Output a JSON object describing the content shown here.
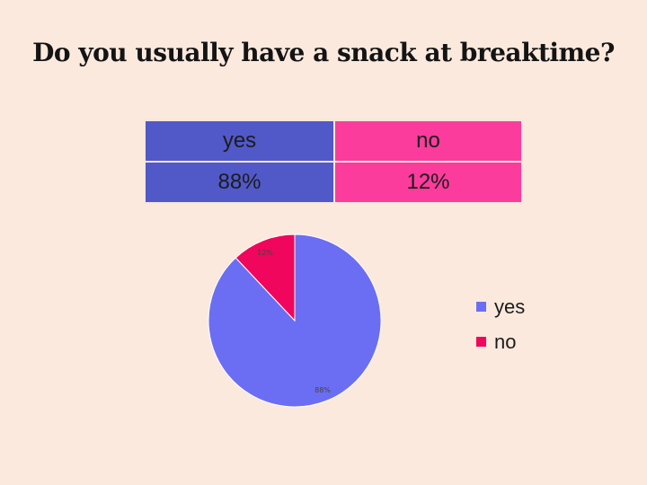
{
  "title": "Do you usually have a snack at breaktime?",
  "table": {
    "headers": [
      "yes",
      "no"
    ],
    "values": [
      "88%",
      "12%"
    ],
    "header_colors": [
      "#5158c8",
      "#fb3c9c"
    ]
  },
  "chart_data": {
    "type": "pie",
    "categories": [
      "yes",
      "no"
    ],
    "values": [
      88,
      12
    ],
    "data_labels": [
      "88%",
      "12%"
    ],
    "colors": [
      "#6b6ef2",
      "#f0065c"
    ],
    "start_angle": "12 o'clock",
    "direction": "clockwise",
    "legend_position": "right"
  },
  "legend": {
    "items": [
      {
        "label": "yes",
        "color": "#6b6ef2"
      },
      {
        "label": "no",
        "color": "#f0065c"
      }
    ]
  }
}
